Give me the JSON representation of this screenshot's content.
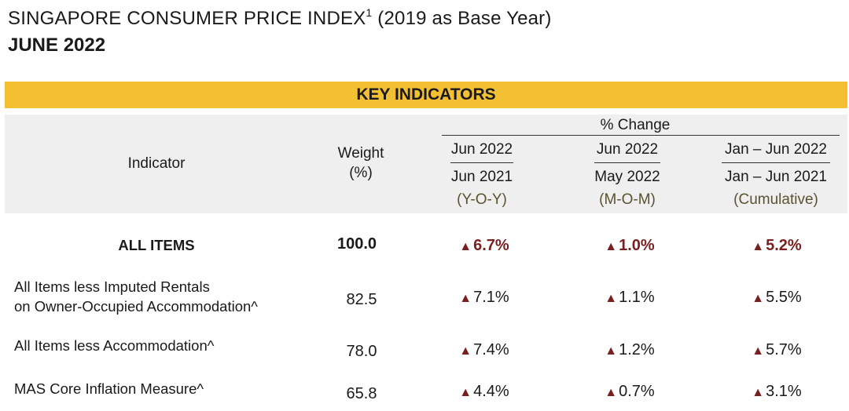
{
  "document": {
    "title": "SINGAPORE CONSUMER PRICE INDEX",
    "title_footnote": "1",
    "title_suffix": "(2019 as Base Year)",
    "subtitle": "JUNE 2022"
  },
  "table": {
    "banner": "KEY INDICATORS",
    "header": {
      "indicator": "Indicator",
      "weight_line1": "Weight",
      "weight_line2": "(%)",
      "pct_change": "% Change",
      "yoy": {
        "top": "Jun 2022",
        "bottom": "Jun 2021",
        "note": "(Y-O-Y)"
      },
      "mom": {
        "top": "Jun 2022",
        "bottom": "May 2022",
        "note": "(M-O-M)"
      },
      "cum": {
        "top": "Jan – Jun 2022",
        "bottom": "Jan – Jun 2021",
        "note": "(Cumulative)"
      }
    },
    "up_arrow_glyph": "▲",
    "rows": [
      {
        "label_line1": "ALL ITEMS",
        "label_line2": "",
        "weight": "100.0",
        "yoy": "6.7%",
        "mom": "1.0%",
        "cum": "5.2%"
      },
      {
        "label_line1": "All Items less Imputed Rentals",
        "label_line2": "on Owner-Occupied Accommodation^",
        "weight": "82.5",
        "yoy": "7.1%",
        "mom": "1.1%",
        "cum": "5.5%"
      },
      {
        "label_line1": "All Items less Accommodation^",
        "label_line2": "",
        "weight": "78.0",
        "yoy": "7.4%",
        "mom": "1.2%",
        "cum": "5.7%"
      },
      {
        "label_line1": "MAS Core Inflation Measure^",
        "label_line2": "",
        "weight": "65.8",
        "yoy": "4.4%",
        "mom": "0.7%",
        "cum": "3.1%"
      }
    ]
  },
  "colors": {
    "banner": "#f2c032",
    "header_bg": "#efefef",
    "up": "#7a1f1f"
  }
}
